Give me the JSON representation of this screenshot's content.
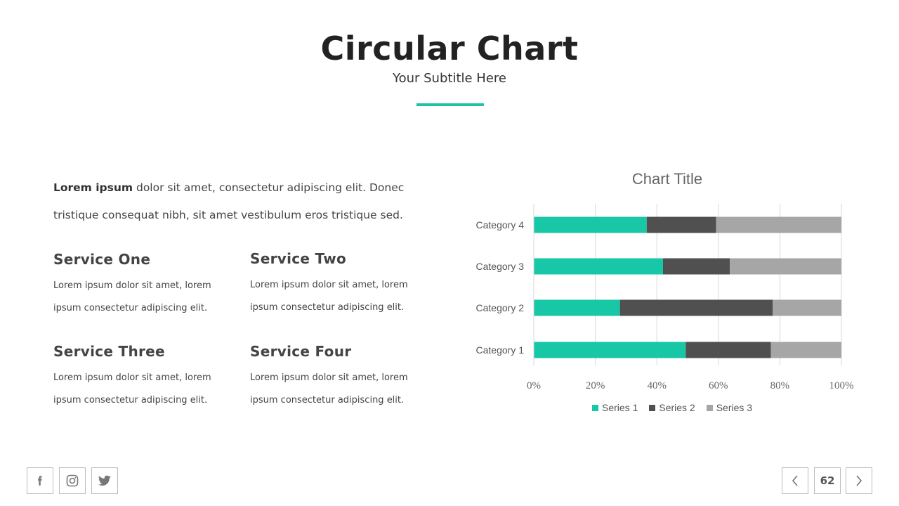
{
  "header": {
    "title": "Circular Chart",
    "subtitle": "Your Subtitle Here"
  },
  "colors": {
    "accent": "#1cc3a6",
    "series1": "#17c7a6",
    "series2": "#505050",
    "series3": "#a6a6a6"
  },
  "intro": {
    "bold": "Lorem ipsum",
    "text": " dolor sit amet, consectetur adipiscing elit. Donec tristique consequat nibh, sit amet vestibulum eros tristique sed."
  },
  "services": [
    {
      "title": "Service One",
      "text": "Lorem ipsum dolor sit amet, lorem ipsum consectetur adipiscing elit."
    },
    {
      "title": "Service Two",
      "text": "Lorem ipsum dolor sit amet, lorem ipsum consectetur adipiscing elit."
    },
    {
      "title": "Service Three",
      "text": "Lorem ipsum dolor sit amet, lorem ipsum consectetur adipiscing elit."
    },
    {
      "title": "Service Four",
      "text": "Lorem ipsum dolor sit amet, lorem ipsum consectetur adipiscing elit."
    }
  ],
  "chart_data": {
    "type": "bar",
    "orientation": "horizontal",
    "stacked": "100%",
    "title": "Chart Title",
    "categories": [
      "Category 1",
      "Category 2",
      "Category 3",
      "Category 4"
    ],
    "series": [
      {
        "name": "Series 1",
        "values": [
          49.4,
          28,
          42,
          36.7
        ]
      },
      {
        "name": "Series 2",
        "values": [
          27.7,
          49.7,
          21.7,
          22.6
        ]
      },
      {
        "name": "Series 3",
        "values": [
          22.9,
          22.3,
          36.3,
          40.7
        ]
      }
    ],
    "x_ticks": [
      "0%",
      "20%",
      "40%",
      "60%",
      "80%",
      "100%"
    ],
    "xlim": [
      0,
      100
    ],
    "grid": true,
    "legend": "bottom"
  },
  "footer": {
    "social_icons": [
      "facebook-icon",
      "instagram-icon",
      "twitter-icon"
    ],
    "page_number": "62"
  }
}
